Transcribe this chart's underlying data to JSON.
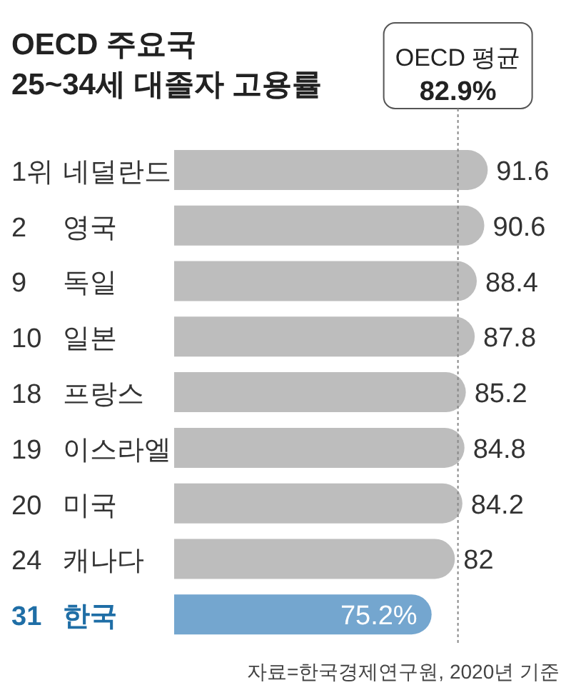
{
  "chart_data": {
    "type": "bar",
    "orientation": "horizontal",
    "title": "OECD 주요국\n25~34세 대졸자 고용률",
    "categories": [
      "1위 네덜란드",
      "2 영국",
      "9 독일",
      "10 일본",
      "18 프랑스",
      "19 이스라엘",
      "20 미국",
      "24 캐나다",
      "31 한국"
    ],
    "values": [
      91.6,
      90.6,
      88.4,
      87.8,
      85.2,
      84.8,
      84.2,
      82,
      75.2
    ],
    "colors": [
      "#bdbdbd",
      "#bdbdbd",
      "#bdbdbd",
      "#bdbdbd",
      "#bdbdbd",
      "#bdbdbd",
      "#bdbdbd",
      "#bdbdbd",
      "#74a6cf"
    ],
    "value_labels": [
      "91.6",
      "90.6",
      "88.4",
      "87.8",
      "85.2",
      "84.8",
      "84.2",
      "82",
      "75.2%"
    ],
    "tick_labels": "y",
    "ref_lines": [
      {
        "axis": "x",
        "value": 82.9,
        "label": "OECD 평균\n82.9%",
        "color": "#888888",
        "line_style": "dotted"
      }
    ],
    "annotations": [
      "자료=한국경제연구원, 2020년 기준"
    ]
  }
}
